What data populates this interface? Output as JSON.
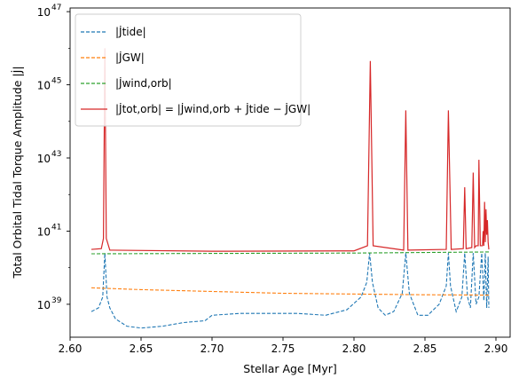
{
  "chart_data": {
    "type": "line",
    "xlabel": "Stellar Age [Myr]",
    "ylabel": "Total Orbital Tidal Torque Amplitude |J̇|",
    "xlim": [
      2.6,
      2.91
    ],
    "ylim_log10": [
      38.1,
      47.1
    ],
    "yscale": "log",
    "x_ticks": [
      "2.60",
      "2.65",
      "2.70",
      "2.75",
      "2.80",
      "2.85",
      "2.90"
    ],
    "x_tick_values": [
      2.6,
      2.65,
      2.7,
      2.75,
      2.8,
      2.85,
      2.9
    ],
    "y_tick_exponents": [
      39,
      41,
      43,
      45,
      47
    ],
    "y_tick_base": "10",
    "grid": false,
    "legend_position": "top-left",
    "series": [
      {
        "name": "|J̇tide|",
        "style": "dashed",
        "color": "#1f77b4",
        "points": [
          [
            2.615,
            38.8
          ],
          [
            2.62,
            38.9
          ],
          [
            2.623,
            39.2
          ],
          [
            2.6245,
            40.4
          ],
          [
            2.626,
            39.2
          ],
          [
            2.628,
            38.9
          ],
          [
            2.632,
            38.6
          ],
          [
            2.64,
            38.4
          ],
          [
            2.65,
            38.35
          ],
          [
            2.665,
            38.4
          ],
          [
            2.68,
            38.5
          ],
          [
            2.695,
            38.55
          ],
          [
            2.7,
            38.7
          ],
          [
            2.72,
            38.75
          ],
          [
            2.74,
            38.75
          ],
          [
            2.76,
            38.75
          ],
          [
            2.78,
            38.7
          ],
          [
            2.795,
            38.85
          ],
          [
            2.805,
            39.2
          ],
          [
            2.809,
            39.6
          ],
          [
            2.811,
            40.4
          ],
          [
            2.813,
            39.6
          ],
          [
            2.817,
            38.9
          ],
          [
            2.822,
            38.7
          ],
          [
            2.828,
            38.8
          ],
          [
            2.834,
            39.3
          ],
          [
            2.8365,
            40.4
          ],
          [
            2.839,
            39.3
          ],
          [
            2.845,
            38.7
          ],
          [
            2.852,
            38.7
          ],
          [
            2.86,
            39.0
          ],
          [
            2.865,
            39.5
          ],
          [
            2.8665,
            40.4
          ],
          [
            2.868,
            39.5
          ],
          [
            2.872,
            38.8
          ],
          [
            2.876,
            39.2
          ],
          [
            2.878,
            40.4
          ],
          [
            2.88,
            39.2
          ],
          [
            2.882,
            38.9
          ],
          [
            2.884,
            40.4
          ],
          [
            2.886,
            39.0
          ],
          [
            2.888,
            39.2
          ],
          [
            2.89,
            40.4
          ],
          [
            2.8915,
            39.1
          ],
          [
            2.8925,
            40.4
          ],
          [
            2.8935,
            38.9
          ],
          [
            2.8945,
            40.3
          ],
          [
            2.895,
            38.9
          ]
        ]
      },
      {
        "name": "|J̇GW|",
        "style": "dashed",
        "color": "#ff7f0e",
        "points": [
          [
            2.615,
            39.45
          ],
          [
            2.65,
            39.4
          ],
          [
            2.7,
            39.35
          ],
          [
            2.75,
            39.3
          ],
          [
            2.8,
            39.28
          ],
          [
            2.85,
            39.26
          ],
          [
            2.895,
            39.25
          ]
        ]
      },
      {
        "name": "|J̇wind,orb|",
        "style": "dashed",
        "color": "#2ca02c",
        "points": [
          [
            2.615,
            40.38
          ],
          [
            2.7,
            40.39
          ],
          [
            2.8,
            40.4
          ],
          [
            2.895,
            40.43
          ]
        ]
      },
      {
        "name": "|J̇tot,orb| = |J̇wind,orb + J̇tide − J̇GW|",
        "style": "solid",
        "color": "#d62728",
        "points": [
          [
            2.615,
            40.5
          ],
          [
            2.622,
            40.52
          ],
          [
            2.6235,
            40.8
          ],
          [
            2.6245,
            46.0
          ],
          [
            2.6255,
            40.8
          ],
          [
            2.628,
            40.48
          ],
          [
            2.7,
            40.45
          ],
          [
            2.8,
            40.46
          ],
          [
            2.8095,
            40.6
          ],
          [
            2.8115,
            45.65
          ],
          [
            2.8135,
            40.6
          ],
          [
            2.835,
            40.48
          ],
          [
            2.8365,
            44.3
          ],
          [
            2.838,
            40.48
          ],
          [
            2.865,
            40.5
          ],
          [
            2.8665,
            44.3
          ],
          [
            2.8685,
            40.5
          ],
          [
            2.877,
            40.52
          ],
          [
            2.878,
            42.2
          ],
          [
            2.879,
            40.52
          ],
          [
            2.883,
            40.55
          ],
          [
            2.884,
            42.6
          ],
          [
            2.885,
            40.55
          ],
          [
            2.886,
            40.6
          ],
          [
            2.8875,
            40.6
          ],
          [
            2.888,
            42.95
          ],
          [
            2.889,
            40.6
          ],
          [
            2.8905,
            40.6
          ],
          [
            2.891,
            41.0
          ],
          [
            2.8915,
            40.6
          ],
          [
            2.892,
            41.8
          ],
          [
            2.8925,
            40.7
          ],
          [
            2.893,
            41.6
          ],
          [
            2.8935,
            40.9
          ],
          [
            2.894,
            41.3
          ],
          [
            2.8945,
            40.7
          ],
          [
            2.895,
            40.5
          ]
        ]
      }
    ]
  }
}
